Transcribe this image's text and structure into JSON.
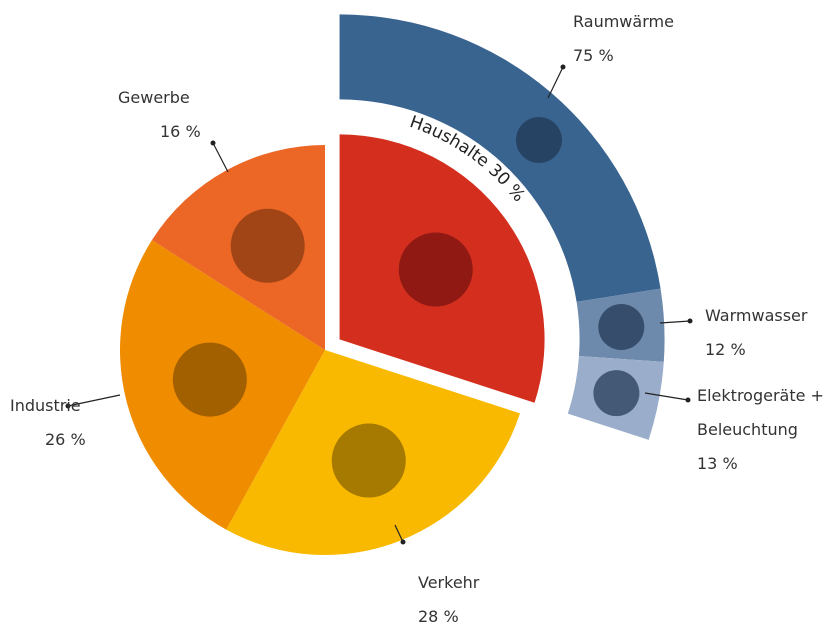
{
  "chart_data": {
    "type": "pie",
    "categories": [
      "Haushalte",
      "Verkehr",
      "Industrie",
      "Gewerbe"
    ],
    "values": [
      30,
      28,
      26,
      16
    ],
    "value_labels": [
      "30 %",
      "28 %",
      "26 %",
      "16 %"
    ],
    "colors": [
      "#d42f1e",
      "#f9b900",
      "#f08c00",
      "#ec6726"
    ],
    "breakdown": {
      "categories": [
        "Raumwärme",
        "Warmwasser",
        "Elektrogeräte + Beleuchtung"
      ],
      "values": [
        75,
        12,
        13
      ],
      "value_labels": [
        "75 %",
        "12 %",
        "13 %"
      ],
      "colors": [
        "#3a6490",
        "#6d89ac",
        "#9aaecb"
      ]
    }
  }
}
